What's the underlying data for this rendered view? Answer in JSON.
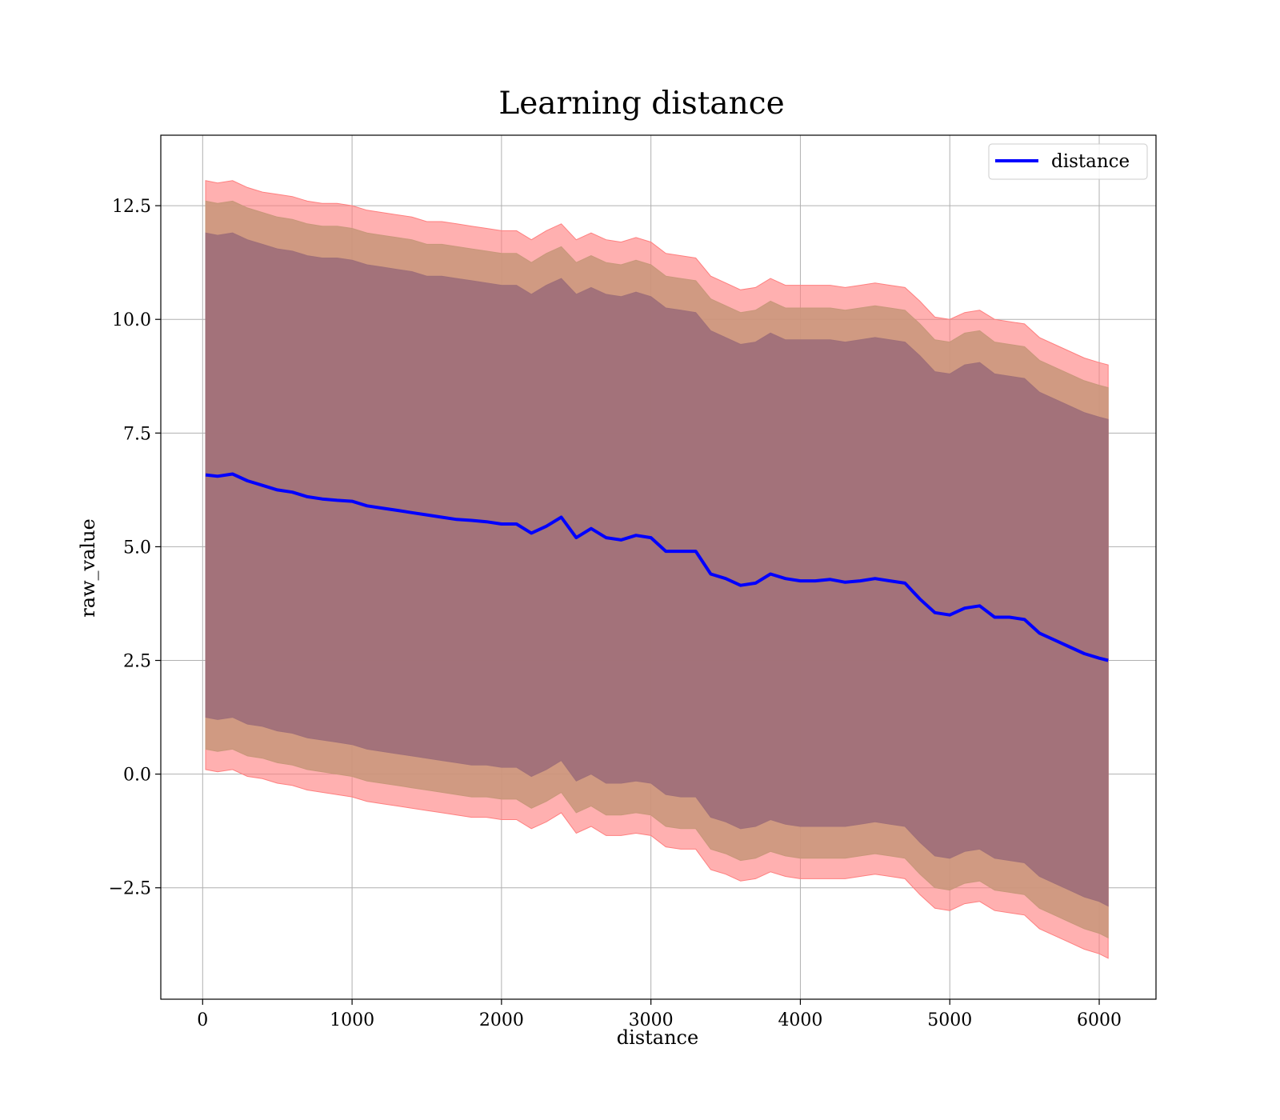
{
  "chart_data": {
    "type": "line",
    "title": "Learning distance",
    "xlabel": "distance",
    "ylabel": "raw_value",
    "xlim": [
      -280,
      6380
    ],
    "ylim": [
      -4.95,
      14.05
    ],
    "x_ticks": [
      0,
      1000,
      2000,
      3000,
      4000,
      5000,
      6000
    ],
    "x_tick_labels": [
      "0",
      "1000",
      "2000",
      "3000",
      "4000",
      "5000",
      "6000"
    ],
    "y_ticks": [
      -2.5,
      0.0,
      2.5,
      5.0,
      7.5,
      10.0,
      12.5
    ],
    "y_tick_labels": [
      "−2.5",
      "0.0",
      "2.5",
      "5.0",
      "7.5",
      "10.0",
      "12.5"
    ],
    "grid": true,
    "legend_position": "top-right",
    "legend": [
      "distance"
    ],
    "colors": {
      "line": "#0000ff",
      "band_outer": "#ff7f7f",
      "band_middle": "#c8977a",
      "band_inner": "#a07079",
      "grid": "#b0b0b0"
    },
    "x": [
      20,
      100,
      200,
      300,
      400,
      500,
      600,
      700,
      800,
      900,
      1000,
      1100,
      1200,
      1300,
      1400,
      1500,
      1600,
      1700,
      1800,
      1900,
      2000,
      2100,
      2200,
      2300,
      2400,
      2500,
      2600,
      2700,
      2800,
      2900,
      3000,
      3100,
      3200,
      3300,
      3400,
      3500,
      3600,
      3700,
      3800,
      3900,
      4000,
      4100,
      4200,
      4300,
      4400,
      4500,
      4600,
      4700,
      4800,
      4900,
      5000,
      5100,
      5200,
      5300,
      5400,
      5500,
      5600,
      5700,
      5800,
      5900,
      6000,
      6060
    ],
    "series": [
      {
        "name": "distance",
        "values": [
          6.58,
          6.55,
          6.6,
          6.45,
          6.35,
          6.25,
          6.2,
          6.1,
          6.05,
          6.02,
          6.0,
          5.9,
          5.85,
          5.8,
          5.75,
          5.7,
          5.65,
          5.6,
          5.58,
          5.55,
          5.5,
          5.5,
          5.3,
          5.45,
          5.65,
          5.2,
          5.4,
          5.2,
          5.15,
          5.25,
          5.2,
          4.9,
          4.9,
          4.9,
          4.4,
          4.3,
          4.15,
          4.2,
          4.4,
          4.3,
          4.25,
          4.25,
          4.28,
          4.22,
          4.25,
          4.3,
          4.25,
          4.2,
          3.85,
          3.55,
          3.5,
          3.65,
          3.7,
          3.45,
          3.45,
          3.4,
          3.1,
          2.95,
          2.8,
          2.65,
          2.55,
          2.5
        ]
      }
    ],
    "bands": [
      {
        "upper": [
          13.05,
          13.0,
          13.05,
          12.9,
          12.8,
          12.75,
          12.7,
          12.6,
          12.55,
          12.55,
          12.5,
          12.4,
          12.35,
          12.3,
          12.25,
          12.15,
          12.15,
          12.1,
          12.05,
          12.0,
          11.95,
          11.95,
          11.75,
          11.95,
          12.1,
          11.75,
          11.9,
          11.75,
          11.7,
          11.8,
          11.7,
          11.45,
          11.4,
          11.35,
          10.95,
          10.8,
          10.65,
          10.7,
          10.9,
          10.75,
          10.75,
          10.75,
          10.75,
          10.7,
          10.75,
          10.8,
          10.75,
          10.7,
          10.4,
          10.05,
          10.0,
          10.15,
          10.2,
          10.0,
          9.95,
          9.9,
          9.6,
          9.45,
          9.3,
          9.15,
          9.05,
          9.0
        ],
        "lower": [
          0.1,
          0.05,
          0.1,
          -0.05,
          -0.1,
          -0.2,
          -0.25,
          -0.35,
          -0.4,
          -0.45,
          -0.5,
          -0.6,
          -0.65,
          -0.7,
          -0.75,
          -0.8,
          -0.85,
          -0.9,
          -0.95,
          -0.95,
          -1.0,
          -1.0,
          -1.2,
          -1.05,
          -0.85,
          -1.3,
          -1.15,
          -1.35,
          -1.35,
          -1.3,
          -1.35,
          -1.6,
          -1.65,
          -1.65,
          -2.1,
          -2.2,
          -2.35,
          -2.3,
          -2.15,
          -2.25,
          -2.3,
          -2.3,
          -2.3,
          -2.3,
          -2.25,
          -2.2,
          -2.25,
          -2.3,
          -2.65,
          -2.95,
          -3.0,
          -2.85,
          -2.8,
          -3.0,
          -3.05,
          -3.1,
          -3.4,
          -3.55,
          -3.7,
          -3.85,
          -3.95,
          -4.05
        ]
      },
      {
        "upper": [
          12.6,
          12.55,
          12.6,
          12.45,
          12.35,
          12.25,
          12.2,
          12.1,
          12.05,
          12.05,
          12.0,
          11.9,
          11.85,
          11.8,
          11.75,
          11.65,
          11.65,
          11.6,
          11.55,
          11.5,
          11.45,
          11.45,
          11.25,
          11.45,
          11.6,
          11.25,
          11.4,
          11.25,
          11.2,
          11.3,
          11.2,
          10.95,
          10.9,
          10.85,
          10.45,
          10.3,
          10.15,
          10.2,
          10.4,
          10.25,
          10.25,
          10.25,
          10.25,
          10.2,
          10.25,
          10.3,
          10.25,
          10.2,
          9.9,
          9.55,
          9.5,
          9.7,
          9.75,
          9.5,
          9.45,
          9.4,
          9.1,
          8.95,
          8.8,
          8.65,
          8.55,
          8.5
        ],
        "lower": [
          0.55,
          0.5,
          0.55,
          0.4,
          0.35,
          0.25,
          0.2,
          0.1,
          0.05,
          0.0,
          -0.05,
          -0.15,
          -0.2,
          -0.25,
          -0.3,
          -0.35,
          -0.4,
          -0.45,
          -0.5,
          -0.5,
          -0.55,
          -0.55,
          -0.75,
          -0.6,
          -0.4,
          -0.85,
          -0.7,
          -0.9,
          -0.9,
          -0.85,
          -0.9,
          -1.15,
          -1.2,
          -1.2,
          -1.65,
          -1.75,
          -1.9,
          -1.85,
          -1.7,
          -1.8,
          -1.85,
          -1.85,
          -1.85,
          -1.85,
          -1.8,
          -1.75,
          -1.8,
          -1.85,
          -2.2,
          -2.5,
          -2.55,
          -2.4,
          -2.35,
          -2.55,
          -2.6,
          -2.65,
          -2.95,
          -3.1,
          -3.25,
          -3.4,
          -3.5,
          -3.6
        ]
      },
      {
        "upper": [
          11.9,
          11.85,
          11.9,
          11.75,
          11.65,
          11.55,
          11.5,
          11.4,
          11.35,
          11.35,
          11.3,
          11.2,
          11.15,
          11.1,
          11.05,
          10.95,
          10.95,
          10.9,
          10.85,
          10.8,
          10.75,
          10.75,
          10.55,
          10.75,
          10.9,
          10.55,
          10.7,
          10.55,
          10.5,
          10.6,
          10.5,
          10.25,
          10.2,
          10.15,
          9.75,
          9.6,
          9.45,
          9.5,
          9.7,
          9.55,
          9.55,
          9.55,
          9.55,
          9.5,
          9.55,
          9.6,
          9.55,
          9.5,
          9.2,
          8.85,
          8.8,
          9.0,
          9.05,
          8.8,
          8.75,
          8.7,
          8.4,
          8.25,
          8.1,
          7.95,
          7.85,
          7.8
        ],
        "lower": [
          1.25,
          1.2,
          1.25,
          1.1,
          1.05,
          0.95,
          0.9,
          0.8,
          0.75,
          0.7,
          0.65,
          0.55,
          0.5,
          0.45,
          0.4,
          0.35,
          0.3,
          0.25,
          0.2,
          0.2,
          0.15,
          0.15,
          -0.05,
          0.1,
          0.3,
          -0.15,
          0.0,
          -0.2,
          -0.2,
          -0.15,
          -0.2,
          -0.45,
          -0.5,
          -0.5,
          -0.95,
          -1.05,
          -1.2,
          -1.15,
          -1.0,
          -1.1,
          -1.15,
          -1.15,
          -1.15,
          -1.15,
          -1.1,
          -1.05,
          -1.1,
          -1.15,
          -1.5,
          -1.8,
          -1.85,
          -1.7,
          -1.65,
          -1.85,
          -1.9,
          -1.95,
          -2.25,
          -2.4,
          -2.55,
          -2.7,
          -2.8,
          -2.9
        ]
      }
    ]
  }
}
